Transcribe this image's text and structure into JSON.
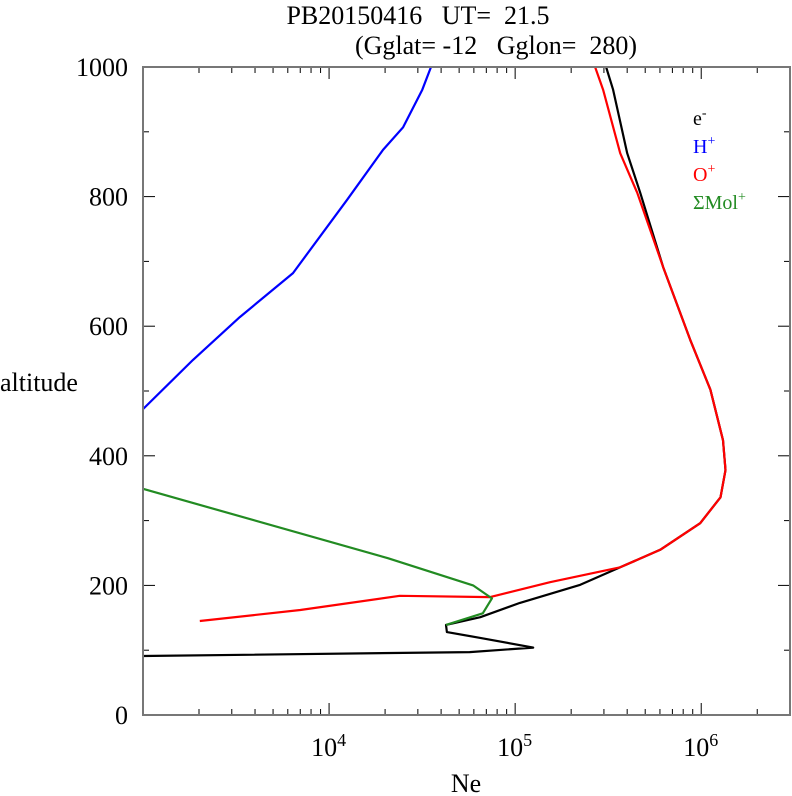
{
  "chart_data": {
    "type": "line",
    "title": "PB20150416   UT=  21.5",
    "subtitle": "(Gglat= -12   Gglon=  280)",
    "xlabel": "Ne",
    "ylabel": "altitude",
    "xscale": "log",
    "xlim": [
      1000,
      3000000
    ],
    "ylim": [
      0,
      1000
    ],
    "grid": false,
    "legend_position": "top-right",
    "x_ticks": [
      {
        "value": 10000,
        "base": "10",
        "exp": "4"
      },
      {
        "value": 100000,
        "base": "10",
        "exp": "5"
      },
      {
        "value": 1000000,
        "base": "10",
        "exp": "6"
      }
    ],
    "y_ticks": [
      {
        "value": 0,
        "label": "0"
      },
      {
        "value": 200,
        "label": "200"
      },
      {
        "value": 400,
        "label": "400"
      },
      {
        "value": 600,
        "label": "600"
      },
      {
        "value": 800,
        "label": "800"
      },
      {
        "value": 1000,
        "label": "1000"
      }
    ],
    "series": [
      {
        "name": "e-",
        "legend_base": "e",
        "legend_sup": "-",
        "color": "#000000",
        "points": [
          [
            1000,
            91
          ],
          [
            57000,
            97
          ],
          [
            125000,
            104
          ],
          [
            65000,
            119
          ],
          [
            43000,
            128
          ],
          [
            42500,
            139
          ],
          [
            65000,
            151
          ],
          [
            106000,
            173
          ],
          [
            224000,
            201
          ],
          [
            367000,
            228
          ],
          [
            602000,
            255
          ],
          [
            988000,
            296
          ],
          [
            1270000,
            336
          ],
          [
            1350000,
            378
          ],
          [
            1310000,
            424
          ],
          [
            1120000,
            502
          ],
          [
            873000,
            579
          ],
          [
            625000,
            691
          ],
          [
            470000,
            806
          ],
          [
            400000,
            867
          ],
          [
            336000,
            965
          ],
          [
            308000,
            1000
          ]
        ]
      },
      {
        "name": "H+",
        "legend_base": "H",
        "legend_sup": "+",
        "color": "#0000ff",
        "points": [
          [
            1000,
            472
          ],
          [
            1857,
            548
          ],
          [
            3313,
            614
          ],
          [
            6400,
            682
          ],
          [
            12500,
            795
          ],
          [
            19500,
            872
          ],
          [
            25000,
            907
          ],
          [
            31700,
            965
          ],
          [
            35300,
            1000
          ]
        ]
      },
      {
        "name": "O+",
        "legend_base": "O",
        "legend_sup": "+",
        "color": "#ff0000",
        "points": [
          [
            2020,
            145
          ],
          [
            7000,
            162
          ],
          [
            24000,
            184
          ],
          [
            73400,
            182
          ],
          [
            154000,
            205
          ],
          [
            367000,
            228
          ],
          [
            602000,
            255
          ],
          [
            988000,
            296
          ],
          [
            1270000,
            336
          ],
          [
            1350000,
            378
          ],
          [
            1310000,
            424
          ],
          [
            1120000,
            502
          ],
          [
            873000,
            579
          ],
          [
            625000,
            691
          ],
          [
            453000,
            806
          ],
          [
            367000,
            867
          ],
          [
            297000,
            965
          ],
          [
            269000,
            1000
          ]
        ]
      },
      {
        "name": "ΣMol+",
        "legend_base": "ΣMol",
        "legend_sup": "+",
        "color": "#228b22",
        "points": [
          [
            1000,
            349
          ],
          [
            20700,
            242
          ],
          [
            59400,
            200
          ],
          [
            75000,
            180
          ],
          [
            67000,
            157
          ],
          [
            42500,
            139
          ]
        ]
      }
    ]
  }
}
